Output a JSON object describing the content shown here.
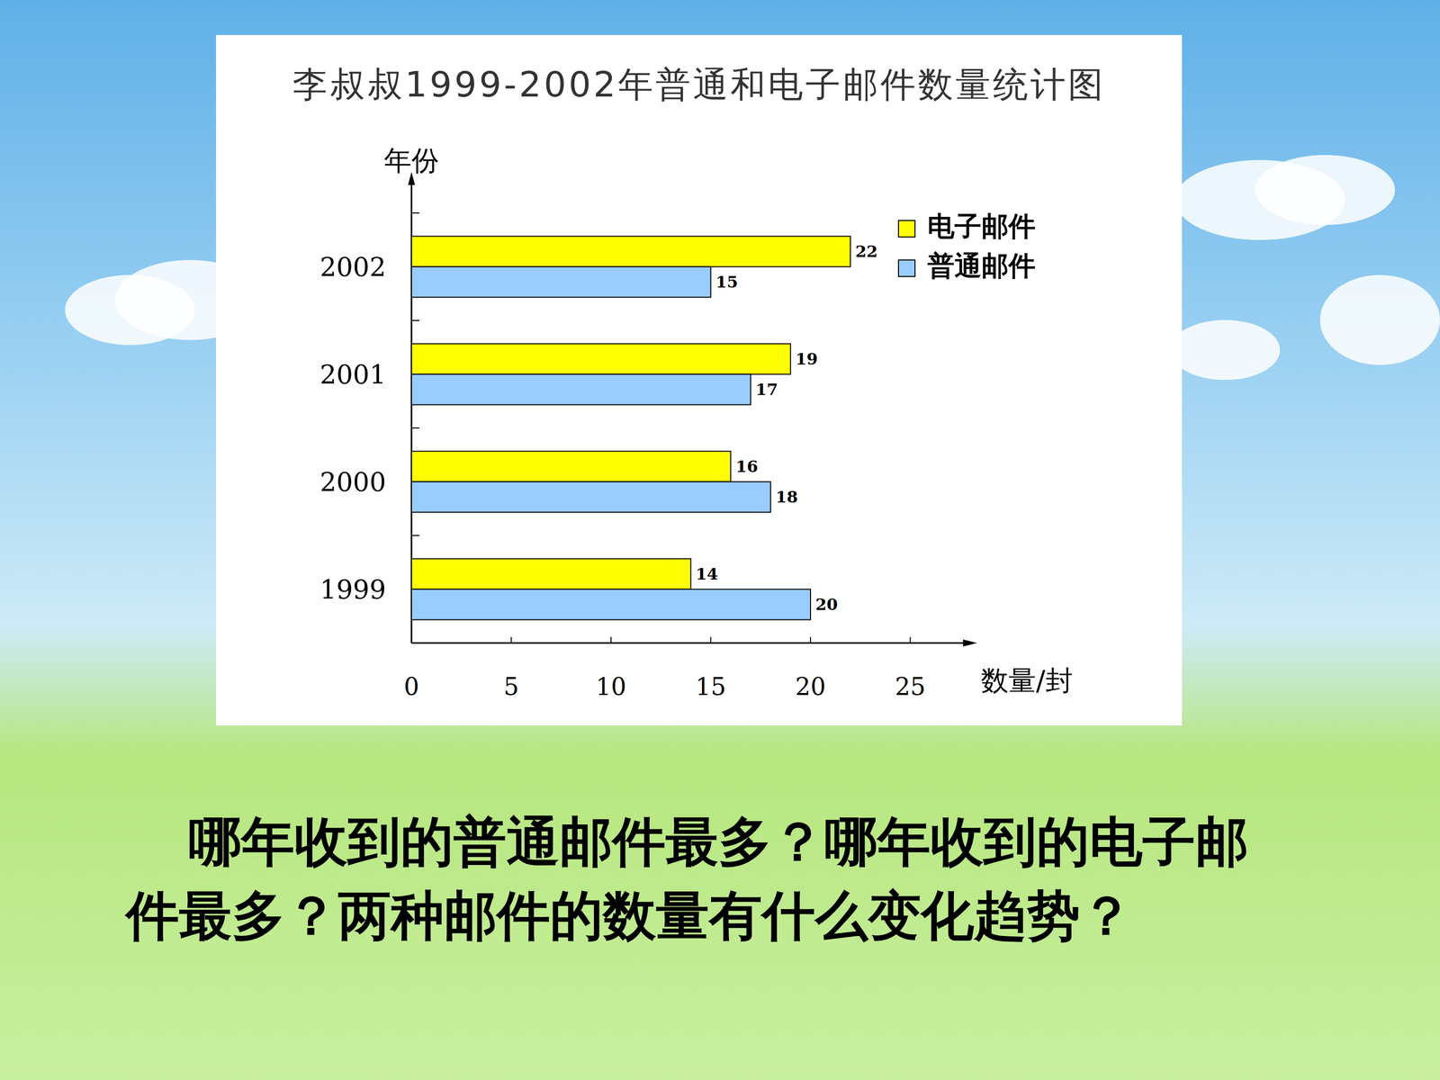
{
  "chart_data": {
    "type": "bar",
    "orientation": "horizontal",
    "title": "李叔叔1999-2002年普通和电子邮件数量统计图",
    "categories": [
      "1999",
      "2000",
      "2001",
      "2002"
    ],
    "series": [
      {
        "name": "电子邮件",
        "color": "#ffff00",
        "values": [
          14,
          16,
          19,
          22
        ]
      },
      {
        "name": "普通邮件",
        "color": "#99ccff",
        "values": [
          20,
          18,
          17,
          15
        ]
      }
    ],
    "xlim": [
      0,
      28
    ],
    "xticks": [
      0,
      5,
      10,
      15,
      20,
      25
    ],
    "x_label": "数量/封",
    "y_label": "年份",
    "legend": "top-right",
    "data_labels": true,
    "annotations": [
      "哪年收到的普通邮件最多？哪年收到的电子邮件最多？两种邮件的数量有什么变化趋势？"
    ]
  }
}
